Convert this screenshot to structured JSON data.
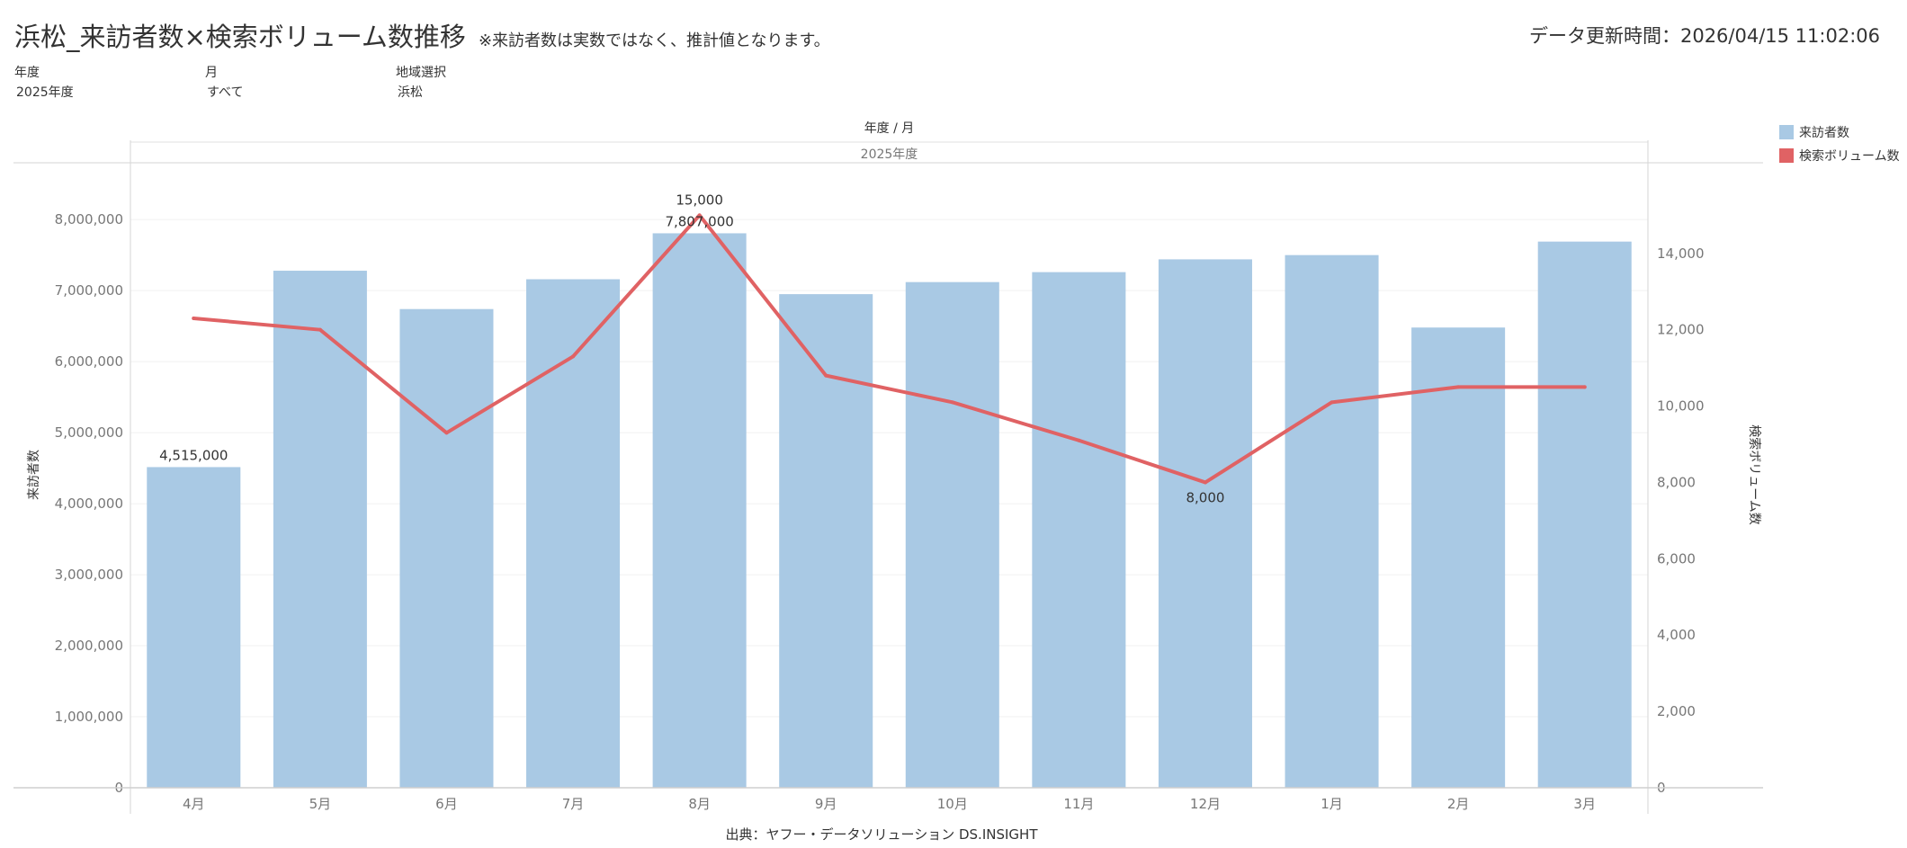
{
  "header": {
    "title": "浜松_来訪者数×検索ボリューム数推移",
    "note": "※来訪者数は実数ではなく、推計値となります。",
    "updated": "データ更新時間：2026/04/15 11:02:06"
  },
  "filters": [
    {
      "label": "年度",
      "value": "2025年度"
    },
    {
      "label": "月",
      "value": "すべて"
    },
    {
      "label": "地域選択",
      "value": "浜松"
    }
  ],
  "legend": [
    {
      "label": "来訪者数",
      "color": "#a9c9e4"
    },
    {
      "label": "検索ボリューム数",
      "color": "#e06264"
    }
  ],
  "source": "出典：ヤフー・データソリューション DS.INSIGHT",
  "chart_data": {
    "type": "bar",
    "header_label": "年度 / 月",
    "year_label": "2025年度",
    "categories": [
      "4月",
      "5月",
      "6月",
      "7月",
      "8月",
      "9月",
      "10月",
      "11月",
      "12月",
      "1月",
      "2月",
      "3月"
    ],
    "series": [
      {
        "name": "来訪者数",
        "type": "bar",
        "axis": "left",
        "color": "#a9c9e4",
        "values": [
          4515000,
          7280000,
          6740000,
          7160000,
          7807000,
          6950000,
          7120000,
          7260000,
          7440000,
          7500000,
          6480000,
          7690000
        ]
      },
      {
        "name": "検索ボリューム数",
        "type": "line",
        "axis": "right",
        "color": "#e06264",
        "values": [
          12300,
          12000,
          9300,
          11300,
          15000,
          10800,
          10100,
          9100,
          8000,
          10100,
          10500,
          10500
        ]
      }
    ],
    "data_labels": [
      {
        "series": 0,
        "index": 0,
        "text": "4,515,000"
      },
      {
        "series": 0,
        "index": 4,
        "text": "7,807,000"
      },
      {
        "series": 1,
        "index": 4,
        "text": "15,000"
      },
      {
        "series": 1,
        "index": 8,
        "text": "8,000"
      }
    ],
    "ylabel_left": "来訪者数",
    "ylabel_right": "検索ボリューム数",
    "ylim_left": [
      0,
      8800000
    ],
    "yticks_left": [
      "0",
      "1,000,000",
      "2,000,000",
      "3,000,000",
      "4,000,000",
      "5,000,000",
      "6,000,000",
      "7,000,000",
      "8,000,000"
    ],
    "ylim_right": [
      0,
      16375
    ],
    "yticks_right": [
      "0",
      "2,000",
      "4,000",
      "6,000",
      "8,000",
      "10,000",
      "12,000",
      "14,000"
    ],
    "grid": true,
    "legend_position": "top-right"
  }
}
